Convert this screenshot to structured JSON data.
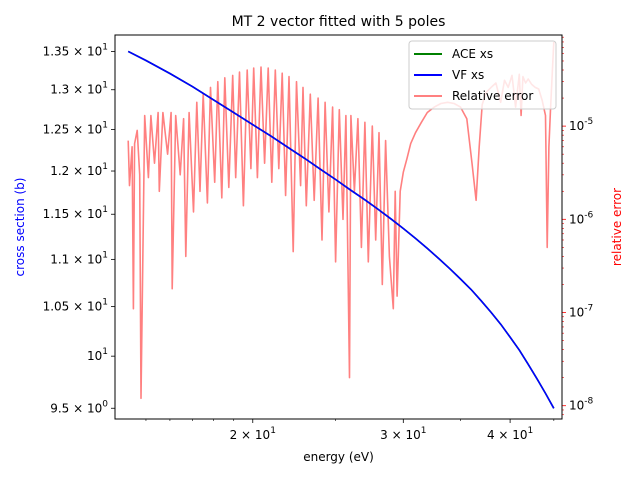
{
  "chart_data": {
    "type": "line",
    "title": "MT 2 vector fitted with 5 poles",
    "xlabel": "energy (eV)",
    "ylabel": "cross section (b)",
    "y2label": "relative error",
    "xscale": "log",
    "yscale": "log",
    "y2scale": "log",
    "xlim": [
      13.8,
      46.0
    ],
    "ylim": [
      9.4,
      13.72
    ],
    "y2lim": [
      7.2e-09,
      9.5e-05
    ],
    "xticks": [
      {
        "value": 20,
        "label": "2 × 10^1"
      },
      {
        "value": 30,
        "label": "3 × 10^1"
      },
      {
        "value": 40,
        "label": "4 × 10^1"
      }
    ],
    "yticks": [
      {
        "value": 9.5,
        "label": "9.5 × 10^0",
        "color": "#000000"
      },
      {
        "value": 10,
        "label": "10^1",
        "color": "#0000ff"
      },
      {
        "value": 10.5,
        "label": "1.05 × 10^1",
        "color": "#000000"
      },
      {
        "value": 11,
        "label": "1.1 × 10^1",
        "color": "#000000"
      },
      {
        "value": 11.5,
        "label": "1.15 × 10^1",
        "color": "#000000"
      },
      {
        "value": 12,
        "label": "1.2 × 10^1",
        "color": "#000000"
      },
      {
        "value": 12.5,
        "label": "1.25 × 10^1",
        "color": "#000000"
      },
      {
        "value": 13,
        "label": "1.3 × 10^1",
        "color": "#000000"
      },
      {
        "value": 13.5,
        "label": "1.35 × 10^1",
        "color": "#000000"
      }
    ],
    "y2ticks": [
      {
        "value": 1e-08,
        "label": "10^-8"
      },
      {
        "value": 1e-07,
        "label": "10^-7"
      },
      {
        "value": 1e-06,
        "label": "10^-6"
      },
      {
        "value": 1e-05,
        "label": "10^-5"
      }
    ],
    "legend_position": "top-right",
    "series": [
      {
        "name": "ACE xs",
        "axis": "left",
        "color": "#008000",
        "x": [
          14.3,
          15,
          16,
          17,
          18,
          19,
          20,
          21,
          22,
          23,
          24,
          25,
          26,
          27,
          28,
          29,
          30,
          31,
          32,
          33,
          34,
          35,
          36,
          37,
          38,
          39,
          40,
          41,
          42,
          43,
          44,
          45
        ],
        "y": [
          13.5,
          13.38,
          13.21,
          13.04,
          12.87,
          12.71,
          12.56,
          12.42,
          12.28,
          12.15,
          12.02,
          11.9,
          11.78,
          11.67,
          11.56,
          11.45,
          11.34,
          11.23,
          11.12,
          11.01,
          10.9,
          10.79,
          10.68,
          10.56,
          10.44,
          10.32,
          10.19,
          10.06,
          9.92,
          9.78,
          9.64,
          9.5
        ]
      },
      {
        "name": "VF xs",
        "axis": "left",
        "color": "#0000ff",
        "x": [
          14.3,
          15,
          16,
          17,
          18,
          19,
          20,
          21,
          22,
          23,
          24,
          25,
          26,
          27,
          28,
          29,
          30,
          31,
          32,
          33,
          34,
          35,
          36,
          37,
          38,
          39,
          40,
          41,
          42,
          43,
          44,
          45
        ],
        "y": [
          13.5,
          13.38,
          13.21,
          13.04,
          12.87,
          12.71,
          12.56,
          12.42,
          12.28,
          12.15,
          12.02,
          11.9,
          11.78,
          11.67,
          11.56,
          11.45,
          11.34,
          11.23,
          11.12,
          11.01,
          10.9,
          10.79,
          10.68,
          10.56,
          10.44,
          10.32,
          10.19,
          10.06,
          9.92,
          9.78,
          9.64,
          9.5
        ]
      },
      {
        "name": "Relative error",
        "axis": "right",
        "color": "#ff8080",
        "x": [
          14.3,
          14.35,
          14.45,
          14.5,
          14.55,
          14.65,
          14.75,
          14.8,
          14.95,
          15.1,
          15.2,
          15.35,
          15.5,
          15.55,
          15.7,
          15.9,
          16.05,
          16.1,
          16.25,
          16.45,
          16.6,
          16.7,
          16.85,
          17.05,
          17.2,
          17.35,
          17.5,
          17.7,
          17.85,
          18.05,
          18.2,
          18.4,
          18.55,
          18.75,
          18.95,
          19.1,
          19.3,
          19.5,
          19.7,
          19.9,
          20.05,
          20.25,
          20.45,
          20.65,
          20.85,
          21.05,
          21.25,
          21.45,
          21.65,
          21.85,
          22.05,
          22.3,
          22.5,
          22.75,
          22.9,
          23.1,
          23.35,
          23.6,
          23.85,
          24.1,
          24.3,
          24.55,
          24.8,
          25.0,
          25.25,
          25.5,
          25.7,
          25.95,
          26.05,
          26.3,
          26.55,
          26.8,
          27.05,
          27.3,
          27.6,
          27.85,
          28.1,
          28.35,
          28.6,
          28.9,
          29.2,
          29.35,
          29.5,
          29.75,
          30.0,
          30.3,
          30.6,
          31.0,
          31.5,
          32.0,
          32.6,
          33.2,
          33.8,
          34.4,
          35.0,
          35.6,
          36.1,
          36.5,
          36.8,
          37.1,
          37.5,
          38.0,
          38.5,
          39.0,
          39.4,
          39.8,
          40.2,
          40.6,
          41.0,
          41.2,
          41.4,
          41.7,
          42.0,
          42.4,
          42.8,
          43.2,
          43.6,
          44.0,
          44.2,
          44.4,
          44.6,
          44.8,
          45.0
        ],
        "y": [
          7e-06,
          2.3e-06,
          6e-06,
          1.1e-07,
          6.5e-06,
          9e-06,
          3e-06,
          1.2e-08,
          1.3e-05,
          2.8e-06,
          1.3e-05,
          4e-06,
          1.4e-05,
          2e-06,
          1.4e-05,
          5e-06,
          1.4e-05,
          1.8e-07,
          1.3e-05,
          3e-06,
          1.2e-05,
          4e-07,
          1.4e-05,
          1.2e-06,
          1.8e-05,
          2e-06,
          2.2e-05,
          1.5e-06,
          2.6e-05,
          2.5e-06,
          3e-05,
          1.7e-06,
          3.3e-05,
          2.2e-06,
          3.5e-05,
          2.8e-06,
          3.8e-05,
          1.4e-06,
          4e-05,
          3.5e-06,
          4.2e-05,
          2.8e-06,
          4.3e-05,
          4e-06,
          4.2e-05,
          2.5e-06,
          4e-05,
          3.5e-06,
          3.7e-05,
          1.8e-06,
          3.4e-05,
          4.5e-07,
          3e-05,
          2.3e-06,
          2.6e-05,
          1.4e-06,
          2.2e-05,
          1.6e-06,
          2e-05,
          6e-07,
          1.8e-05,
          1.2e-06,
          1.6e-05,
          3.5e-07,
          1.5e-05,
          1e-06,
          1.3e-05,
          2e-08,
          1.3e-05,
          2e-06,
          1.2e-05,
          5e-07,
          1.1e-05,
          3.5e-07,
          1e-05,
          6e-07,
          8.5e-06,
          2e-07,
          7e-06,
          4e-07,
          1.1e-07,
          2e-06,
          1.5e-07,
          2e-06,
          3.2e-06,
          4.5e-06,
          6.5e-06,
          8.5e-06,
          1.1e-05,
          1.4e-05,
          1.6e-05,
          1.75e-05,
          1.8e-05,
          1.75e-05,
          1.6e-05,
          1.2e-05,
          4e-06,
          1.6e-06,
          6e-06,
          1.7e-05,
          2.3e-05,
          2.6e-05,
          2.9e-05,
          1.8e-05,
          3.1e-05,
          2.6e-05,
          3.5e-05,
          1.6e-05,
          3.6e-05,
          1.3e-05,
          3.4e-05,
          2.9e-05,
          3.2e-05,
          2.8e-05,
          2.6e-05,
          2.5e-05,
          1.9e-05,
          1.3e-05,
          5e-07,
          6e-06,
          1.5e-05,
          3.6e-05,
          8e-05
        ]
      }
    ]
  }
}
